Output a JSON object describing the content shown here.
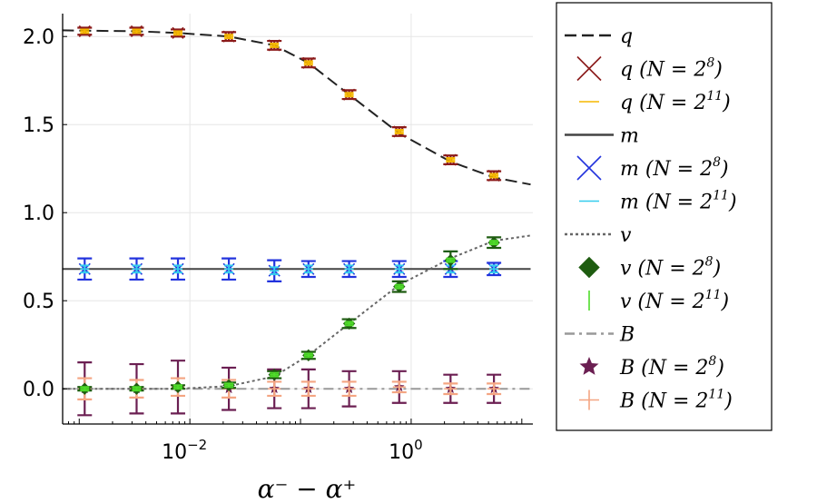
{
  "chart_data": {
    "type": "line",
    "xscale": "log",
    "xlim_log10": [
      -3.15,
      1.1
    ],
    "ylim": [
      -0.2,
      2.13
    ],
    "grid": true,
    "legend_position": "outside-right",
    "xlabel": "α⁻ − α⁺",
    "ylabel": "",
    "x_tick_labels": [
      {
        "value": 0.01,
        "base": "10",
        "exp": "−2"
      },
      {
        "value": 1,
        "base": "10",
        "exp": "0"
      }
    ],
    "y_tick_labels": [
      {
        "value": 0.0,
        "label": "0.0"
      },
      {
        "value": 0.5,
        "label": "0.5"
      },
      {
        "value": 1.0,
        "label": "1.0"
      },
      {
        "value": 1.5,
        "label": "1.5"
      },
      {
        "value": 2.0,
        "label": "2.0"
      }
    ],
    "x": [
      0.00112,
      0.0033,
      0.0078,
      0.0225,
      0.058,
      0.118,
      0.275,
      0.78,
      2.27,
      5.6
    ],
    "lines": [
      {
        "name": "q",
        "style": "dash",
        "color": "#222222",
        "x": [
          0.0007,
          0.00112,
          0.0033,
          0.0078,
          0.0225,
          0.058,
          0.118,
          0.275,
          0.78,
          2.27,
          5.6,
          12
        ],
        "y": [
          2.035,
          2.033,
          2.03,
          2.02,
          2.0,
          1.95,
          1.85,
          1.67,
          1.45,
          1.29,
          1.2,
          1.16
        ]
      },
      {
        "name": "m",
        "style": "solid",
        "color": "#444444",
        "x": [
          0.0007,
          12
        ],
        "y": [
          0.68,
          0.68
        ]
      },
      {
        "name": "v",
        "style": "dot",
        "color": "#666666",
        "x": [
          0.0007,
          0.00112,
          0.0033,
          0.0078,
          0.0225,
          0.058,
          0.118,
          0.275,
          0.78,
          2.27,
          5.6,
          12
        ],
        "y": [
          0.0,
          0.0,
          0.0,
          0.0,
          0.015,
          0.07,
          0.19,
          0.37,
          0.59,
          0.74,
          0.84,
          0.87
        ]
      },
      {
        "name": "B",
        "style": "dashdot",
        "color": "#999999",
        "x": [
          0.0007,
          12
        ],
        "y": [
          0.0,
          0.0
        ]
      }
    ],
    "series": [
      {
        "name": "q (N=2^8)",
        "marker": "x",
        "color": "#8b1a1a",
        "values": [
          2.03,
          2.03,
          2.02,
          2.0,
          1.95,
          1.85,
          1.67,
          1.46,
          1.3,
          1.21
        ],
        "errors": [
          0.02,
          0.02,
          0.02,
          0.025,
          0.025,
          0.025,
          0.025,
          0.025,
          0.025,
          0.025
        ]
      },
      {
        "name": "q (N=2^11)",
        "marker": "bar",
        "color": "#f5b800",
        "values": [
          2.03,
          2.03,
          2.02,
          2.0,
          1.95,
          1.85,
          1.67,
          1.46,
          1.3,
          1.21
        ],
        "errors": [
          0.01,
          0.01,
          0.01,
          0.01,
          0.01,
          0.01,
          0.01,
          0.01,
          0.01,
          0.01
        ]
      },
      {
        "name": "m (N=2^8)",
        "marker": "x",
        "color": "#2233dd",
        "values": [
          0.68,
          0.68,
          0.68,
          0.68,
          0.67,
          0.68,
          0.68,
          0.68,
          0.68,
          0.68
        ],
        "errors": [
          0.06,
          0.06,
          0.06,
          0.06,
          0.06,
          0.045,
          0.045,
          0.045,
          0.045,
          0.035
        ]
      },
      {
        "name": "m (N=2^11)",
        "marker": "bar",
        "color": "#33ccee",
        "values": [
          0.68,
          0.68,
          0.68,
          0.68,
          0.67,
          0.68,
          0.68,
          0.68,
          0.68,
          0.68
        ],
        "errors": [
          0.02,
          0.02,
          0.02,
          0.02,
          0.02,
          0.02,
          0.02,
          0.02,
          0.02,
          0.02
        ]
      },
      {
        "name": "v (N=2^8)",
        "marker": "diamond",
        "color": "#1e5c10",
        "values": [
          0.0,
          0.0,
          0.01,
          0.02,
          0.08,
          0.19,
          0.37,
          0.58,
          0.73,
          0.83
        ],
        "errors": [
          0.01,
          0.01,
          0.01,
          0.015,
          0.02,
          0.02,
          0.025,
          0.03,
          0.05,
          0.03
        ]
      },
      {
        "name": "v (N=2^11)",
        "marker": "bar",
        "color": "#4fdc2a",
        "values": [
          0.0,
          0.0,
          0.01,
          0.02,
          0.08,
          0.19,
          0.37,
          0.58,
          0.73,
          0.83
        ],
        "errors": [
          0.01,
          0.01,
          0.01,
          0.01,
          0.01,
          0.01,
          0.01,
          0.01,
          0.01,
          0.01
        ]
      },
      {
        "name": "B (N=2^8)",
        "marker": "star",
        "color": "#6b1f52",
        "values": [
          0.0,
          0.0,
          0.01,
          0.0,
          0.0,
          0.0,
          0.0,
          0.01,
          0.0,
          0.0
        ],
        "errors": [
          0.15,
          0.14,
          0.15,
          0.12,
          0.11,
          0.11,
          0.1,
          0.09,
          0.08,
          0.08
        ]
      },
      {
        "name": "B (N=2^11)",
        "marker": "plus",
        "color": "#f4a582",
        "values": [
          0.0,
          0.0,
          0.01,
          0.0,
          0.0,
          0.0,
          0.0,
          0.01,
          0.0,
          0.0
        ],
        "errors": [
          0.06,
          0.05,
          0.05,
          0.05,
          0.04,
          0.04,
          0.04,
          0.03,
          0.03,
          0.03
        ]
      }
    ],
    "legend": [
      {
        "kind": "line",
        "ref": "q",
        "style": "dash",
        "color": "#222222",
        "var": "q",
        "label": "q"
      },
      {
        "kind": "marker",
        "marker": "x",
        "color": "#8b1a1a",
        "var": "q",
        "label": "q (N = 2^8)",
        "n_base": "N = 2",
        "n_exp": "8"
      },
      {
        "kind": "marker",
        "marker": "hline",
        "color": "#f5b800",
        "var": "q",
        "label": "q (N = 2^11)",
        "n_base": "N = 2",
        "n_exp": "11"
      },
      {
        "kind": "line",
        "ref": "m",
        "style": "solid",
        "color": "#444444",
        "var": "m",
        "label": "m"
      },
      {
        "kind": "marker",
        "marker": "x",
        "color": "#2233dd",
        "var": "m",
        "label": "m (N = 2^8)",
        "n_base": "N = 2",
        "n_exp": "8"
      },
      {
        "kind": "marker",
        "marker": "hline",
        "color": "#33ccee",
        "var": "m",
        "label": "m (N = 2^11)",
        "n_base": "N = 2",
        "n_exp": "11"
      },
      {
        "kind": "line",
        "ref": "v",
        "style": "dot",
        "color": "#666666",
        "var": "v",
        "label": "v"
      },
      {
        "kind": "marker",
        "marker": "diamond",
        "color": "#1e5c10",
        "var": "v",
        "label": "v (N = 2^8)",
        "n_base": "N = 2",
        "n_exp": "8"
      },
      {
        "kind": "marker",
        "marker": "vline",
        "color": "#4fdc2a",
        "var": "v",
        "label": "v (N = 2^11)",
        "n_base": "N = 2",
        "n_exp": "11"
      },
      {
        "kind": "line",
        "ref": "B",
        "style": "dashdot",
        "color": "#999999",
        "var": "B",
        "label": "B"
      },
      {
        "kind": "marker",
        "marker": "star",
        "color": "#6b1f52",
        "var": "B",
        "label": "B (N = 2^8)",
        "n_base": "N = 2",
        "n_exp": "8"
      },
      {
        "kind": "marker",
        "marker": "plus",
        "color": "#f4a582",
        "var": "B",
        "label": "B (N = 2^11)",
        "n_base": "N = 2",
        "n_exp": "11"
      }
    ]
  }
}
